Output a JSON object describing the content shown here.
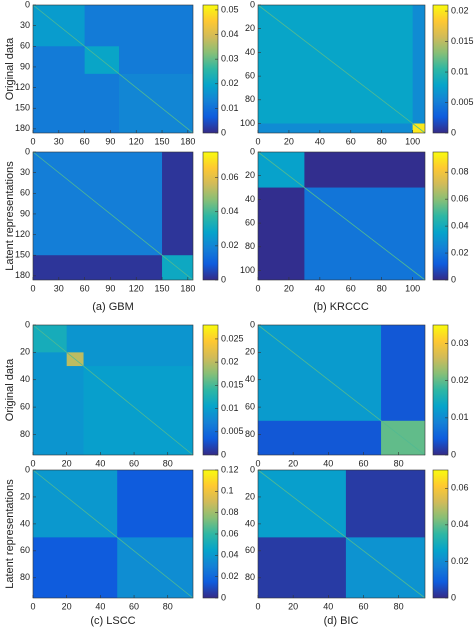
{
  "colormap": [
    "#352a87",
    "#0f5cdd",
    "#1481d6",
    "#06a4ca",
    "#2eb7a4",
    "#87bf77",
    "#d1bb59",
    "#fec832",
    "#f9fb0e"
  ],
  "row_labels": [
    "Original data",
    "Latent representations"
  ],
  "captions": [
    "(a) GBM",
    "(b) KRCCC",
    "(c) LSCC",
    "(d) BIC"
  ],
  "chart_data": [
    {
      "type": "heatmap",
      "y_reversed": true,
      "xlim": [
        0,
        186
      ],
      "ylim": [
        0,
        186
      ],
      "xticks": [
        0,
        30,
        60,
        90,
        120,
        150,
        180
      ],
      "yticks": [
        0,
        30,
        60,
        90,
        120,
        150,
        180
      ],
      "clim": [
        0,
        0.052
      ],
      "cticks": [
        0,
        0.01,
        0.02,
        0.03,
        0.04,
        0.05
      ],
      "background": 0.012,
      "blocks": [
        {
          "range": [
            0,
            60
          ],
          "value": 0.018
        },
        {
          "range": [
            60,
            100
          ],
          "value": 0.02
        },
        {
          "range": [
            100,
            186
          ],
          "value": 0.014
        }
      ]
    },
    {
      "type": "heatmap",
      "y_reversed": true,
      "xlim": [
        0,
        186
      ],
      "ylim": [
        0,
        186
      ],
      "xticks": [
        0,
        30,
        60,
        90,
        120,
        150,
        180
      ],
      "yticks": [
        0,
        30,
        60,
        90,
        120,
        150,
        180
      ],
      "clim": [
        0,
        0.075
      ],
      "cticks": [
        0,
        0.02,
        0.04,
        0.06
      ],
      "background": 0.002,
      "blocks": [
        {
          "range": [
            0,
            150
          ],
          "value": 0.018
        },
        {
          "range": [
            150,
            186
          ],
          "value": 0.03
        }
      ]
    },
    {
      "type": "heatmap",
      "y_reversed": true,
      "xlim": [
        0,
        108
      ],
      "ylim": [
        0,
        108
      ],
      "xticks": [
        0,
        20,
        40,
        60,
        80,
        100
      ],
      "yticks": [
        0,
        20,
        40,
        60,
        80,
        100
      ],
      "clim": [
        0,
        0.021
      ],
      "cticks": [
        0,
        0.005,
        0.01,
        0.015,
        0.02
      ],
      "background": 0.006,
      "blocks": [
        {
          "range": [
            0,
            100
          ],
          "value": 0.008
        },
        {
          "range": [
            100,
            108
          ],
          "value": 0.02
        }
      ]
    },
    {
      "type": "heatmap",
      "y_reversed": true,
      "xlim": [
        0,
        108
      ],
      "ylim": [
        0,
        108
      ],
      "xticks": [
        0,
        20,
        40,
        60,
        80,
        100
      ],
      "yticks": [
        0,
        20,
        40,
        60,
        80,
        100
      ],
      "clim": [
        0,
        0.095
      ],
      "cticks": [
        0,
        0.02,
        0.04,
        0.06,
        0.08
      ],
      "background": 0.001,
      "blocks": [
        {
          "range": [
            0,
            30
          ],
          "value": 0.035
        },
        {
          "range": [
            30,
            108
          ],
          "value": 0.02
        }
      ]
    },
    {
      "type": "heatmap",
      "y_reversed": true,
      "xlim": [
        0,
        95
      ],
      "ylim": [
        0,
        95
      ],
      "xticks": [
        0,
        20,
        40,
        60,
        80
      ],
      "yticks": [
        0,
        20,
        40,
        60,
        80
      ],
      "clim": [
        0,
        0.028
      ],
      "cticks": [
        0,
        0.005,
        0.01,
        0.015,
        0.02,
        0.025
      ],
      "background": 0.009,
      "blocks": [
        {
          "range": [
            0,
            20
          ],
          "value": 0.012
        },
        {
          "range": [
            20,
            30
          ],
          "value": 0.02
        },
        {
          "range": [
            30,
            95
          ],
          "value": 0.01
        }
      ]
    },
    {
      "type": "heatmap",
      "y_reversed": true,
      "xlim": [
        0,
        95
      ],
      "ylim": [
        0,
        95
      ],
      "xticks": [
        0,
        20,
        40,
        60,
        80
      ],
      "yticks": [
        0,
        20,
        40,
        60,
        80
      ],
      "clim": [
        0,
        0.12
      ],
      "cticks": [
        0,
        0.02,
        0.04,
        0.06,
        0.08,
        0.1,
        0.12
      ],
      "background": 0.015,
      "blocks": [
        {
          "range": [
            0,
            50
          ],
          "value": 0.04
        },
        {
          "range": [
            50,
            95
          ],
          "value": 0.035
        }
      ]
    },
    {
      "type": "heatmap",
      "y_reversed": true,
      "xlim": [
        0,
        95
      ],
      "ylim": [
        0,
        95
      ],
      "xticks": [
        0,
        20,
        40,
        60,
        80
      ],
      "yticks": [
        0,
        20,
        40,
        60,
        80
      ],
      "clim": [
        0,
        0.035
      ],
      "cticks": [
        0,
        0.01,
        0.02,
        0.03
      ],
      "background": 0.004,
      "blocks": [
        {
          "range": [
            0,
            70
          ],
          "value": 0.012
        },
        {
          "range": [
            70,
            95
          ],
          "value": 0.02
        }
      ]
    },
    {
      "type": "heatmap",
      "y_reversed": true,
      "xlim": [
        0,
        95
      ],
      "ylim": [
        0,
        95
      ],
      "xticks": [
        0,
        20,
        40,
        60,
        80
      ],
      "yticks": [
        0,
        20,
        40,
        60,
        80
      ],
      "clim": [
        0,
        0.07
      ],
      "cticks": [
        0,
        0.02,
        0.04,
        0.06
      ],
      "background": 0.003,
      "blocks": [
        {
          "range": [
            0,
            50
          ],
          "value": 0.025
        },
        {
          "range": [
            50,
            95
          ],
          "value": 0.022
        }
      ]
    }
  ]
}
